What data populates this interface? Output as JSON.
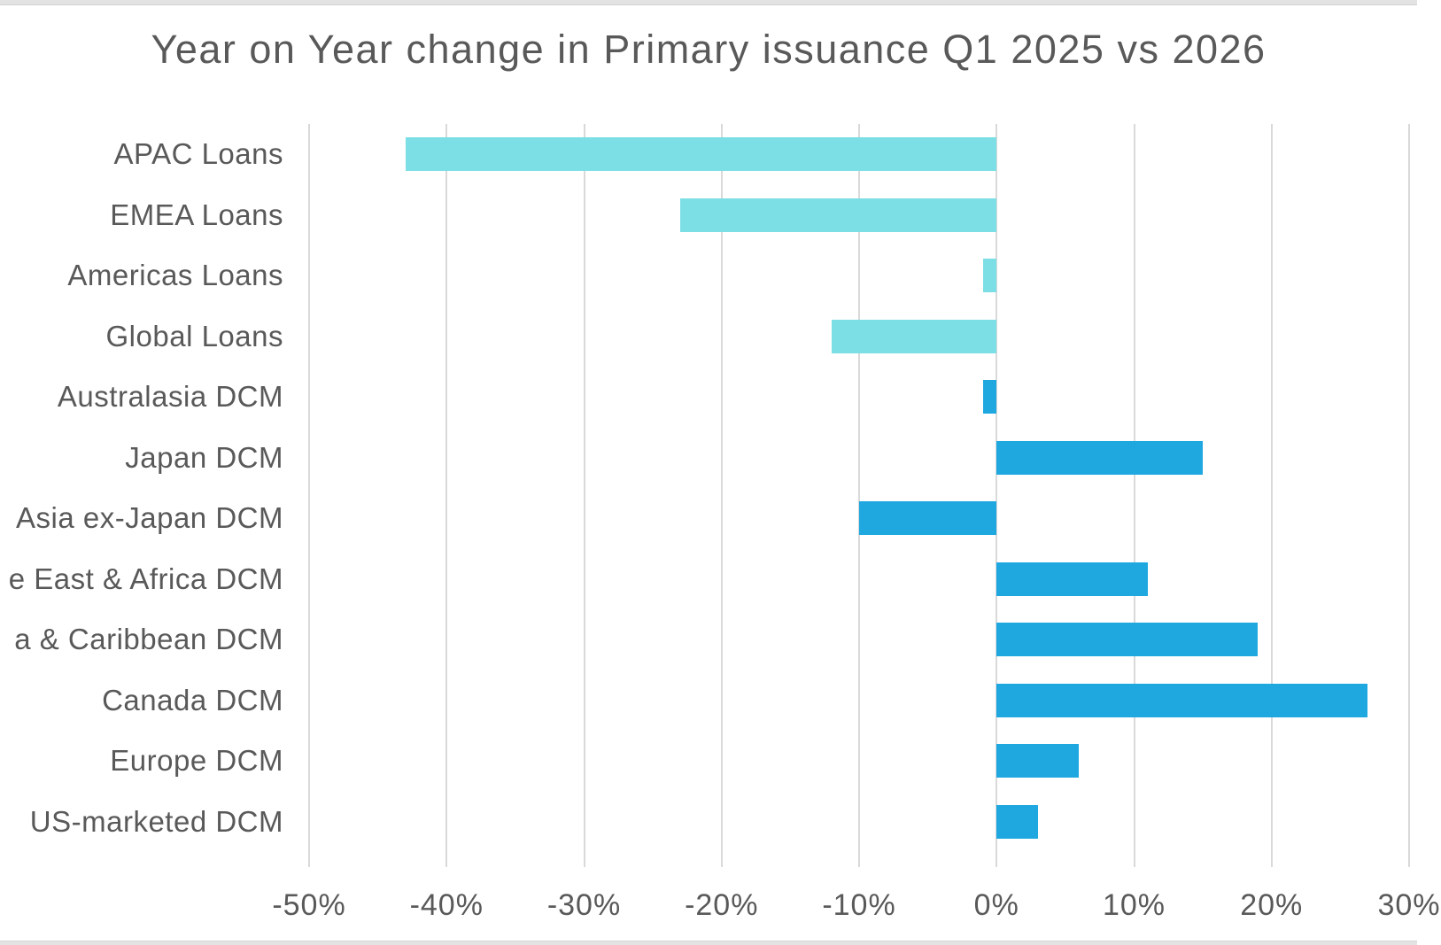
{
  "chart_data": {
    "type": "bar",
    "orientation": "horizontal",
    "title": "Year on Year change in Primary issuance Q1 2025 vs 2026",
    "categories": [
      "APAC Loans",
      "EMEA Loans",
      "Americas Loans",
      "Global Loans",
      "Australasia DCM",
      "Japan DCM",
      "Asia ex-Japan DCM",
      "e East & Africa DCM",
      "a & Caribbean DCM",
      "Canada DCM",
      "Europe DCM",
      "US-marketed DCM"
    ],
    "values": [
      -43,
      -23,
      -1,
      -12,
      -1,
      15,
      -10,
      11,
      19,
      27,
      6,
      3
    ],
    "unit": "%",
    "groups": [
      "Loans",
      "Loans",
      "Loans",
      "Loans",
      "DCM",
      "DCM",
      "DCM",
      "DCM",
      "DCM",
      "DCM",
      "DCM",
      "DCM"
    ],
    "palette": {
      "Loans": "#7CDFE5",
      "DCM": "#1FA8E0"
    },
    "xlim": [
      -50,
      30
    ],
    "x_ticks": [
      "-50%",
      "-40%",
      "-30%",
      "-20%",
      "-10%",
      "0%",
      "10%",
      "20%",
      "30%"
    ],
    "grid": "vertical",
    "legend": "none",
    "colors": {
      "gridline": "#d9d9d9",
      "text": "#595959",
      "background": "#ffffff",
      "edge_strip": "#e3e3e3"
    }
  }
}
